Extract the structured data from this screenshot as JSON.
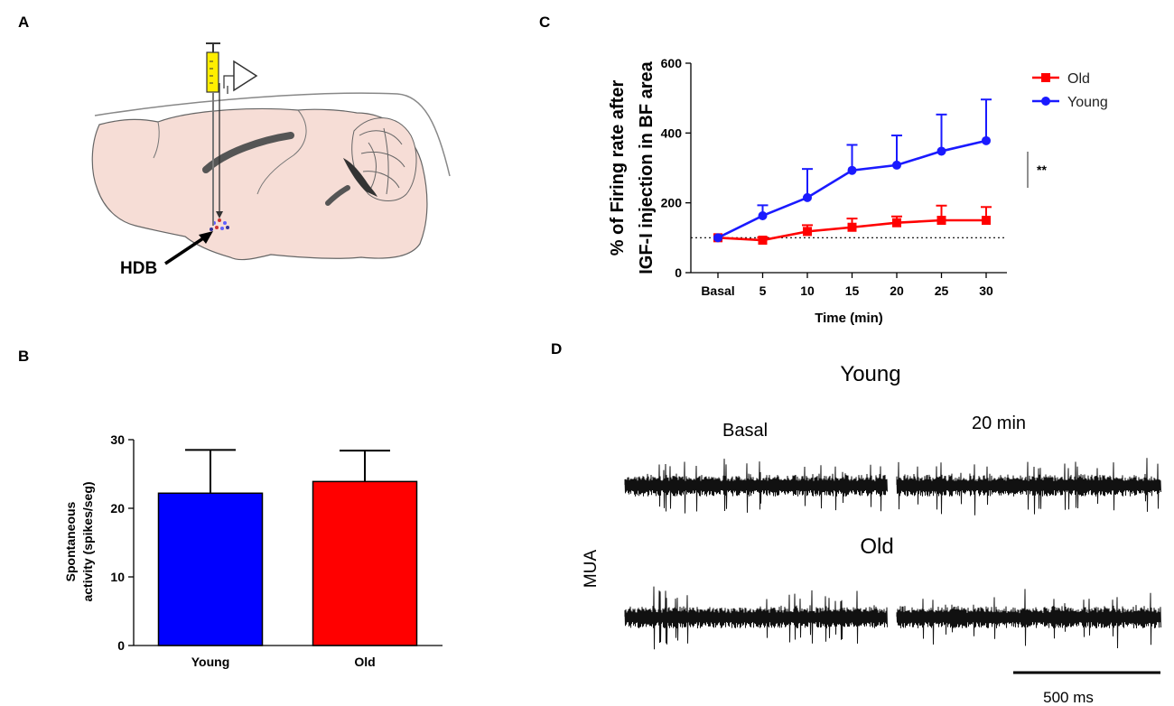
{
  "panels": {
    "A": {
      "label": "A",
      "region_label": "HDB"
    },
    "B": {
      "label": "B"
    },
    "C": {
      "label": "C"
    },
    "D": {
      "label": "D",
      "young_title": "Young",
      "old_title": "Old",
      "basal_label": "Basal",
      "time_label": "20 min",
      "mua_label": "MUA",
      "scale_label": "500 ms"
    }
  },
  "colors": {
    "young": "#1a1aff",
    "old": "#ff0000",
    "brain_fill": "#f6ddd6",
    "syringe": "#ffee00"
  },
  "chart_data": [
    {
      "id": "line",
      "type": "line",
      "title": "",
      "xlabel": "Time (min)",
      "ylabel_line1": "% of Firing rate after",
      "ylabel_line2": "IGF-I injection in BF area",
      "categories": [
        "Basal",
        "5",
        "10",
        "15",
        "20",
        "25",
        "30"
      ],
      "ylim": [
        0,
        600
      ],
      "yticks": [
        0,
        200,
        400,
        600
      ],
      "baseline": 100,
      "significance": "**",
      "legend_position": "top-right",
      "series": [
        {
          "name": "Old",
          "color": "#ff0000",
          "marker": "square",
          "values": [
            100,
            93,
            118,
            130,
            143,
            150,
            150
          ],
          "errors": [
            5,
            8,
            18,
            25,
            18,
            42,
            38
          ]
        },
        {
          "name": "Young",
          "color": "#1a1aff",
          "marker": "circle",
          "values": [
            100,
            163,
            215,
            293,
            308,
            348,
            378
          ],
          "errors": [
            5,
            30,
            82,
            73,
            85,
            105,
            118
          ]
        }
      ]
    },
    {
      "id": "bar",
      "type": "bar",
      "title": "",
      "xlabel": "",
      "ylabel_line1": "Spontaneous",
      "ylabel_line2": "activity (spikes/seg)",
      "categories": [
        "Young",
        "Old"
      ],
      "values": [
        22.2,
        23.9
      ],
      "errors": [
        6.3,
        4.5
      ],
      "colors": [
        "#0000ff",
        "#ff0000"
      ],
      "ylim": [
        0,
        30
      ],
      "yticks": [
        0,
        10,
        20,
        30
      ]
    }
  ]
}
